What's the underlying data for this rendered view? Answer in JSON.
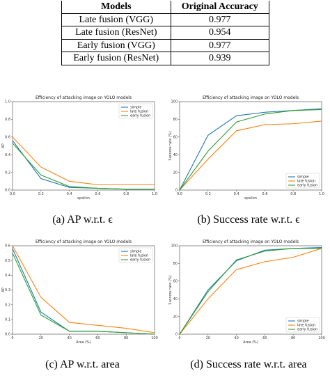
{
  "table": {
    "headers": [
      "Models",
      "Original Accuracy"
    ],
    "rows": [
      [
        "Late fusion (VGG)",
        "0.977"
      ],
      [
        "Late fusion (ResNet)",
        "0.954"
      ],
      [
        "Early fusion (VGG)",
        "0.977"
      ],
      [
        "Early fusion (ResNet)",
        "0.939"
      ]
    ]
  },
  "captions": {
    "a": "(a) AP w.r.t. ϵ",
    "b": "(b) Success rate w.r.t. ϵ",
    "c": "(c) AP w.r.t. area",
    "d": "(d) Success rate w.r.t. area"
  },
  "colors": {
    "simple": "#1f77b4",
    "late": "#ff7f0e",
    "early": "#2ca02c"
  },
  "chart_data": [
    {
      "id": "a",
      "type": "line",
      "title": "Efficiency of attacking image on YOLO models",
      "xlabel": "epsilon",
      "ylabel": "AP",
      "xlim": [
        0.0,
        1.0
      ],
      "ylim": [
        0.0,
        1.0
      ],
      "xticks": [
        0.0,
        0.2,
        0.4,
        0.6,
        0.8,
        1.0
      ],
      "xticklabels": [
        "0.0",
        "0.2",
        "0.4",
        "0.6",
        "0.8",
        "1.0"
      ],
      "yticks": [
        0.0,
        0.2,
        0.4,
        0.6,
        0.8,
        1.0
      ],
      "yticklabels": [
        "0.0",
        "0.2",
        "0.4",
        "0.6",
        "0.8",
        "1.0"
      ],
      "legend": "top-right",
      "x": [
        0.0,
        0.2,
        0.4,
        0.6,
        0.8,
        1.0
      ],
      "series": [
        {
          "name": "simple",
          "color": "#1f77b4",
          "values": [
            0.56,
            0.13,
            0.03,
            0.02,
            0.01,
            0.01
          ]
        },
        {
          "name": "late fusion",
          "color": "#ff7f0e",
          "values": [
            0.6,
            0.26,
            0.1,
            0.06,
            0.06,
            0.06
          ]
        },
        {
          "name": "early fusion",
          "color": "#2ca02c",
          "values": [
            0.53,
            0.17,
            0.04,
            0.02,
            0.01,
            0.01
          ]
        }
      ]
    },
    {
      "id": "b",
      "type": "line",
      "title": "Efficiency of attacking image on YOLO models",
      "xlabel": "epsilon",
      "ylabel": "Success rate (%)",
      "xlim": [
        0.0,
        1.0
      ],
      "ylim": [
        0,
        100
      ],
      "xticks": [
        0.0,
        0.2,
        0.4,
        0.6,
        0.8,
        1.0
      ],
      "xticklabels": [
        "0.0",
        "0.2",
        "0.4",
        "0.6",
        "0.8",
        "1.0"
      ],
      "yticks": [
        0,
        20,
        40,
        60,
        80,
        100
      ],
      "yticklabels": [
        "0",
        "20",
        "40",
        "60",
        "80",
        "100"
      ],
      "legend": "bottom-right",
      "x": [
        0.0,
        0.2,
        0.4,
        0.6,
        0.8,
        1.0
      ],
      "series": [
        {
          "name": "simple",
          "color": "#1f77b4",
          "values": [
            0,
            62,
            84,
            88,
            90,
            92
          ]
        },
        {
          "name": "late fusion",
          "color": "#ff7f0e",
          "values": [
            0,
            35,
            67,
            74,
            75,
            78
          ]
        },
        {
          "name": "early fusion",
          "color": "#2ca02c",
          "values": [
            0,
            44,
            77,
            86,
            90,
            91
          ]
        }
      ]
    },
    {
      "id": "c",
      "type": "line",
      "title": "Efficiency of attacking image on YOLO models",
      "xlabel": "Area (%)",
      "ylabel": "AP",
      "xlim": [
        0,
        100
      ],
      "ylim": [
        0.0,
        0.6
      ],
      "xticks": [
        0,
        20,
        40,
        60,
        80,
        100
      ],
      "xticklabels": [
        "0",
        "20",
        "40",
        "60",
        "80",
        "100"
      ],
      "yticks": [
        0.0,
        0.1,
        0.2,
        0.3,
        0.4,
        0.5,
        0.6
      ],
      "yticklabels": [
        "0.0",
        "0.1",
        "0.2",
        "0.3",
        "0.4",
        "0.5",
        "0.6"
      ],
      "legend": "top-right",
      "x": [
        0,
        20,
        40,
        60,
        80,
        100
      ],
      "series": [
        {
          "name": "simple",
          "color": "#1f77b4",
          "values": [
            0.58,
            0.15,
            0.02,
            0.02,
            0.01,
            0.0
          ]
        },
        {
          "name": "late fusion",
          "color": "#ff7f0e",
          "values": [
            0.6,
            0.25,
            0.08,
            0.06,
            0.04,
            0.01
          ]
        },
        {
          "name": "early fusion",
          "color": "#2ca02c",
          "values": [
            0.55,
            0.13,
            0.02,
            0.02,
            0.01,
            0.0
          ]
        }
      ]
    },
    {
      "id": "d",
      "type": "line",
      "title": "Efficiency of attacking image on YOLO models",
      "xlabel": "Area (%)",
      "ylabel": "Success rate (%)",
      "xlim": [
        0,
        100
      ],
      "ylim": [
        0,
        100
      ],
      "xticks": [
        0,
        20,
        40,
        60,
        80,
        100
      ],
      "xticklabels": [
        "0",
        "20",
        "40",
        "60",
        "80",
        "100"
      ],
      "yticks": [
        0,
        20,
        40,
        60,
        80,
        100
      ],
      "yticklabels": [
        "0",
        "20",
        "40",
        "60",
        "80",
        "100"
      ],
      "legend": "bottom-right",
      "x": [
        0,
        20,
        40,
        60,
        80,
        100
      ],
      "series": [
        {
          "name": "simple",
          "color": "#1f77b4",
          "values": [
            0,
            50,
            83,
            95,
            97,
            98
          ]
        },
        {
          "name": "late fusion",
          "color": "#ff7f0e",
          "values": [
            0,
            40,
            73,
            82,
            87,
            97
          ]
        },
        {
          "name": "early fusion",
          "color": "#2ca02c",
          "values": [
            0,
            48,
            84,
            94,
            97,
            97
          ]
        }
      ]
    }
  ]
}
